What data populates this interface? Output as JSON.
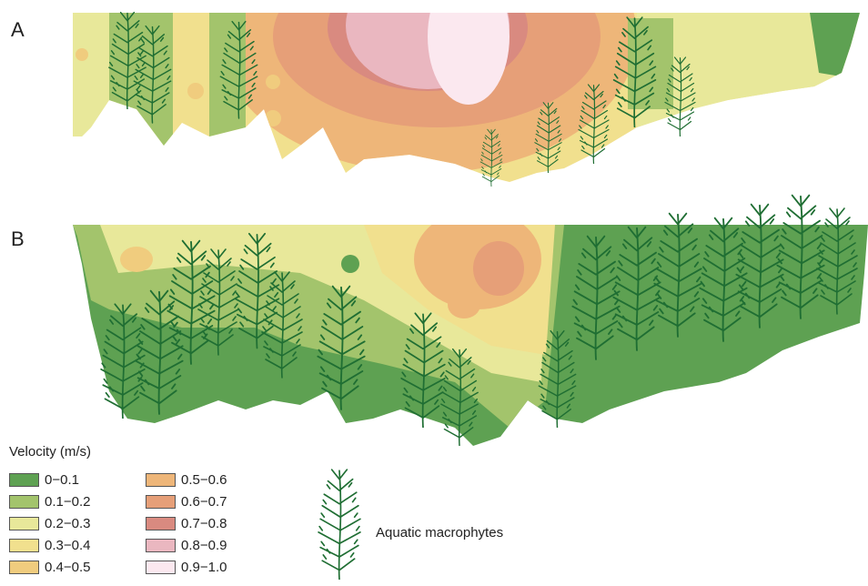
{
  "panels": [
    {
      "label": "A"
    },
    {
      "label": "B"
    }
  ],
  "legend": {
    "title": "Velocity (m/s)",
    "classes": [
      {
        "range": "0−0.1",
        "color": "#5ea152"
      },
      {
        "range": "0.1−0.2",
        "color": "#a3c46c"
      },
      {
        "range": "0.2−0.3",
        "color": "#e8e89a"
      },
      {
        "range": "0.3−0.4",
        "color": "#f1e08e"
      },
      {
        "range": "0.4−0.5",
        "color": "#f0cc7e"
      },
      {
        "range": "0.5−0.6",
        "color": "#eeb679"
      },
      {
        "range": "0.6−0.7",
        "color": "#e69f78"
      },
      {
        "range": "0.7−0.8",
        "color": "#d98a80"
      },
      {
        "range": "0.8−0.9",
        "color": "#eab7c0"
      },
      {
        "range": "0.9−1.0",
        "color": "#fbe8ef"
      }
    ],
    "macrophyte_label": "Aquatic macrophytes",
    "macrophyte_color": "#1f6e33"
  }
}
